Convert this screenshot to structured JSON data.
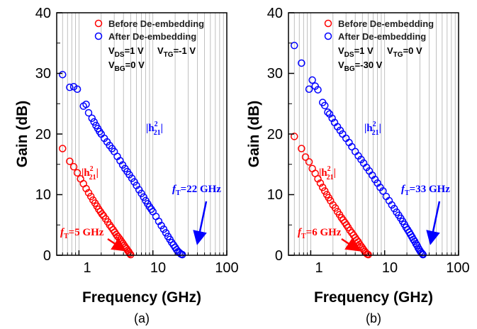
{
  "colors": {
    "before": "#ff0000",
    "after": "#0000ff",
    "grid": "#b0b0b0"
  },
  "chart_data": [
    {
      "type": "scatter",
      "panel_label": "(a)",
      "xlabel": "Frequency (GHz)",
      "ylabel": "Gain (dB)",
      "xscale": "log",
      "xlim": [
        0.5,
        100
      ],
      "ylim": [
        0,
        40
      ],
      "xtick_labels": [
        "1",
        "10",
        "100"
      ],
      "ytick_labels": [
        "0",
        "10",
        "20",
        "30",
        "40"
      ],
      "grid": "vertical minor log gridlines",
      "legend_position": "top",
      "legend": [
        "Before De-embedding",
        "After De-embedding"
      ],
      "conditions": [
        {
          "pre": "V",
          "sub": "DS",
          "post": "=1 V"
        },
        {
          "pre": "V",
          "sub": "TG",
          "post": "=-1 V"
        },
        {
          "pre": "V",
          "sub": "BG",
          "post": "=0 V"
        }
      ],
      "series": [
        {
          "name": "Before De-embedding",
          "label_main": "|h",
          "label_sup": "2",
          "label_sub": "21",
          "label_end": "|",
          "points": [
            [
              0.6,
              17.6
            ],
            [
              0.75,
              15.5
            ],
            [
              0.85,
              14.6
            ],
            [
              0.95,
              13.6
            ],
            [
              1.05,
              12.6
            ],
            [
              1.15,
              11.8
            ],
            [
              1.25,
              11.0
            ],
            [
              1.35,
              10.3
            ],
            [
              1.45,
              9.7
            ],
            [
              1.55,
              9.1
            ],
            [
              1.65,
              8.6
            ],
            [
              1.75,
              8.1
            ],
            [
              1.85,
              7.6
            ],
            [
              1.95,
              7.2
            ],
            [
              2.05,
              6.8
            ],
            [
              2.15,
              6.5
            ],
            [
              2.3,
              6.0
            ],
            [
              2.45,
              5.5
            ],
            [
              2.6,
              5.0
            ],
            [
              2.75,
              4.6
            ],
            [
              2.9,
              4.2
            ],
            [
              3.05,
              3.8
            ],
            [
              3.2,
              3.4
            ],
            [
              3.35,
              3.1
            ],
            [
              3.5,
              2.8
            ],
            [
              3.65,
              2.5
            ],
            [
              3.8,
              2.2
            ],
            [
              3.95,
              1.9
            ],
            [
              4.1,
              1.6
            ],
            [
              4.25,
              1.3
            ],
            [
              4.4,
              1.1
            ],
            [
              4.55,
              0.8
            ],
            [
              4.7,
              0.6
            ],
            [
              4.85,
              0.3
            ],
            [
              5.0,
              0.1
            ]
          ]
        },
        {
          "name": "After De-embedding",
          "label_main": "|h",
          "label_sup": "2",
          "label_sub": "21",
          "label_end": "|",
          "points": [
            [
              0.6,
              29.8
            ],
            [
              0.75,
              27.7
            ],
            [
              0.85,
              27.8
            ],
            [
              0.95,
              27.4
            ],
            [
              1.15,
              24.6
            ],
            [
              1.25,
              24.9
            ],
            [
              1.35,
              23.5
            ],
            [
              1.5,
              22.6
            ],
            [
              1.6,
              22.0
            ],
            [
              1.7,
              21.4
            ],
            [
              1.8,
              20.9
            ],
            [
              1.9,
              20.4
            ],
            [
              2.0,
              20.0
            ],
            [
              2.2,
              19.3
            ],
            [
              2.4,
              18.7
            ],
            [
              2.6,
              18.1
            ],
            [
              2.8,
              17.6
            ],
            [
              3.0,
              17.1
            ],
            [
              3.3,
              16.3
            ],
            [
              3.6,
              15.6
            ],
            [
              3.9,
              14.9
            ],
            [
              4.2,
              14.3
            ],
            [
              4.5,
              13.8
            ],
            [
              4.8,
              13.3
            ],
            [
              5.2,
              12.7
            ],
            [
              5.6,
              12.1
            ],
            [
              6.0,
              11.5
            ],
            [
              6.5,
              10.8
            ],
            [
              7.0,
              10.2
            ],
            [
              7.5,
              9.6
            ],
            [
              8.0,
              9.0
            ],
            [
              8.5,
              8.5
            ],
            [
              9.0,
              8.0
            ],
            [
              9.5,
              7.6
            ],
            [
              10.0,
              7.2
            ],
            [
              11.0,
              6.4
            ],
            [
              12.0,
              5.6
            ],
            [
              13.0,
              4.9
            ],
            [
              14.0,
              4.3
            ],
            [
              15.0,
              3.7
            ],
            [
              16.0,
              3.1
            ],
            [
              17.0,
              2.6
            ],
            [
              18.0,
              2.1
            ],
            [
              19.0,
              1.7
            ],
            [
              20.0,
              1.3
            ],
            [
              21.0,
              0.9
            ],
            [
              22.0,
              0.6
            ],
            [
              23.0,
              0.4
            ],
            [
              24.0,
              0.2
            ],
            [
              25.0,
              0.1
            ]
          ]
        }
      ],
      "annotations": [
        {
          "series": "After De-embedding",
          "pre": "f",
          "sub": "T",
          "post": "=22 GHz"
        },
        {
          "series": "Before De-embedding",
          "pre": "f",
          "sub": "T",
          "post": "=5 GHz"
        }
      ]
    },
    {
      "type": "scatter",
      "panel_label": "(b)",
      "xlabel": "Frequency (GHz)",
      "ylabel": "Gain (dB)",
      "xscale": "log",
      "xlim": [
        0.5,
        100
      ],
      "ylim": [
        0,
        40
      ],
      "xtick_labels": [
        "1",
        "10",
        "100"
      ],
      "ytick_labels": [
        "0",
        "10",
        "20",
        "30",
        "40"
      ],
      "grid": "vertical minor log gridlines",
      "legend_position": "top",
      "legend": [
        "Before De-embedding",
        "After De-embedding"
      ],
      "conditions": [
        {
          "pre": "V",
          "sub": "DS",
          "post": "=1 V"
        },
        {
          "pre": "V",
          "sub": "TG",
          "post": "=0 V"
        },
        {
          "pre": "V",
          "sub": "BG",
          "post": "=-30 V"
        }
      ],
      "series": [
        {
          "name": "Before De-embedding",
          "label_main": "|h",
          "label_sup": "2",
          "label_sub": "21",
          "label_end": "|",
          "points": [
            [
              0.6,
              19.6
            ],
            [
              0.75,
              17.6
            ],
            [
              0.85,
              16.2
            ],
            [
              0.95,
              15.4
            ],
            [
              1.05,
              14.3
            ],
            [
              1.15,
              13.5
            ],
            [
              1.25,
              12.6
            ],
            [
              1.35,
              11.9
            ],
            [
              1.45,
              11.2
            ],
            [
              1.55,
              10.6
            ],
            [
              1.65,
              10.0
            ],
            [
              1.75,
              9.5
            ],
            [
              1.85,
              9.0
            ],
            [
              2.0,
              8.3
            ],
            [
              2.15,
              7.8
            ],
            [
              2.3,
              7.2
            ],
            [
              2.45,
              6.7
            ],
            [
              2.6,
              6.2
            ],
            [
              2.75,
              5.8
            ],
            [
              2.9,
              5.4
            ],
            [
              3.05,
              5.0
            ],
            [
              3.2,
              4.6
            ],
            [
              3.4,
              4.1
            ],
            [
              3.6,
              3.7
            ],
            [
              3.8,
              3.3
            ],
            [
              4.0,
              2.9
            ],
            [
              4.2,
              2.5
            ],
            [
              4.4,
              2.2
            ],
            [
              4.6,
              1.8
            ],
            [
              4.8,
              1.5
            ],
            [
              5.0,
              1.2
            ],
            [
              5.2,
              0.9
            ],
            [
              5.4,
              0.6
            ],
            [
              5.6,
              0.4
            ],
            [
              5.8,
              0.2
            ],
            [
              6.0,
              0.1
            ]
          ]
        },
        {
          "name": "After De-embedding",
          "label_main": "|h",
          "label_sup": "2",
          "label_sub": "21",
          "label_end": "|",
          "points": [
            [
              0.6,
              34.6
            ],
            [
              0.75,
              31.7
            ],
            [
              0.95,
              27.4
            ],
            [
              1.05,
              28.9
            ],
            [
              1.15,
              27.9
            ],
            [
              1.25,
              27.3
            ],
            [
              1.45,
              25.2
            ],
            [
              1.55,
              24.7
            ],
            [
              1.7,
              23.6
            ],
            [
              1.8,
              23.3
            ],
            [
              1.95,
              22.6
            ],
            [
              2.1,
              21.9
            ],
            [
              2.3,
              21.2
            ],
            [
              2.5,
              20.6
            ],
            [
              2.7,
              20.0
            ],
            [
              3.0,
              19.3
            ],
            [
              3.3,
              18.6
            ],
            [
              3.6,
              17.9
            ],
            [
              4.0,
              17.1
            ],
            [
              4.4,
              16.4
            ],
            [
              4.8,
              15.8
            ],
            [
              5.2,
              15.2
            ],
            [
              5.7,
              14.5
            ],
            [
              6.2,
              13.9
            ],
            [
              6.8,
              13.2
            ],
            [
              7.4,
              12.5
            ],
            [
              8.0,
              11.9
            ],
            [
              8.7,
              11.2
            ],
            [
              9.5,
              10.6
            ],
            [
              10.5,
              9.7
            ],
            [
              11.5,
              9.0
            ],
            [
              12.5,
              8.3
            ],
            [
              13.5,
              7.7
            ],
            [
              14.5,
              7.1
            ],
            [
              15.5,
              6.6
            ],
            [
              16.5,
              6.1
            ],
            [
              17.5,
              5.6
            ],
            [
              18.5,
              5.1
            ],
            [
              19.5,
              4.6
            ],
            [
              20.5,
              4.2
            ],
            [
              21.5,
              3.8
            ],
            [
              22.5,
              3.4
            ],
            [
              23.5,
              3.0
            ],
            [
              24.5,
              2.6
            ],
            [
              25.5,
              2.3
            ],
            [
              26.5,
              1.9
            ],
            [
              27.5,
              1.6
            ],
            [
              28.5,
              1.2
            ],
            [
              29.5,
              0.9
            ],
            [
              30.5,
              0.6
            ],
            [
              31.5,
              0.4
            ],
            [
              32.5,
              0.2
            ],
            [
              33.0,
              0.1
            ]
          ]
        }
      ],
      "annotations": [
        {
          "series": "After De-embedding",
          "pre": "f",
          "sub": "T",
          "post": "=33 GHz"
        },
        {
          "series": "Before De-embedding",
          "pre": "f",
          "sub": "T",
          "post": "=6 GHz"
        }
      ]
    }
  ]
}
